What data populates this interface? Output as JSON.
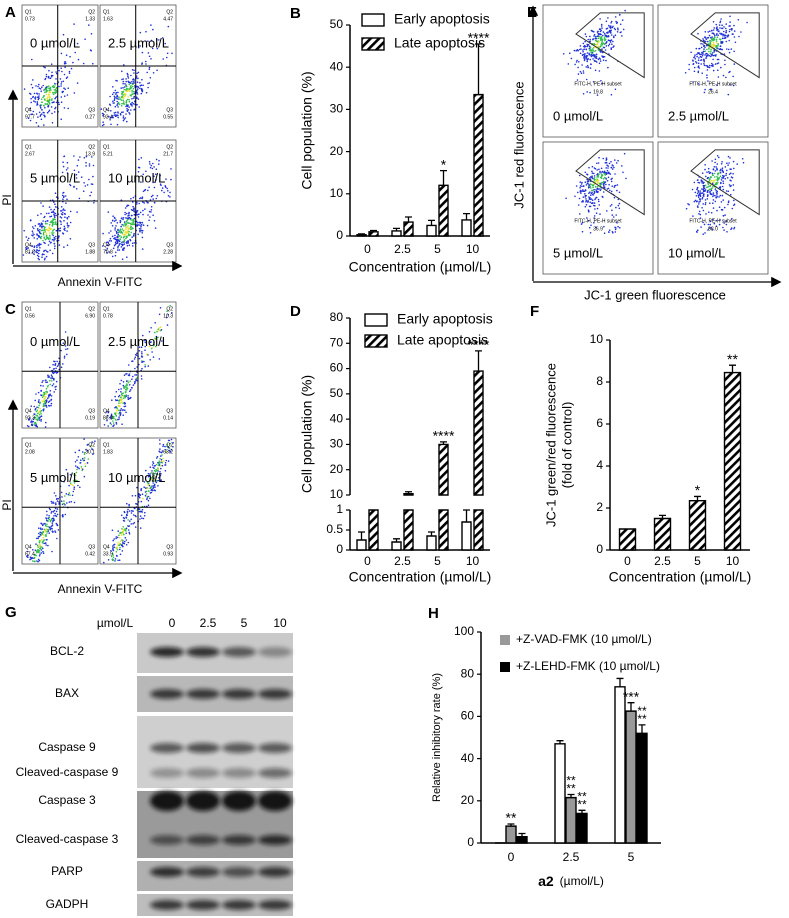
{
  "chart_data": [
    {
      "type": "bar",
      "panel": "B",
      "ylabel": "Cell population (%)",
      "xlabel": "Concentration (µmol/L)",
      "categories": [
        "0",
        "2.5",
        "5",
        "10"
      ],
      "ylim": [
        0,
        50
      ],
      "yticks": [
        0,
        10,
        20,
        30,
        40,
        50
      ],
      "series": [
        {
          "name": "Early apoptosis",
          "color": "#ffffff",
          "hatch": false,
          "values": [
            0.3,
            1.2,
            2.5,
            3.8
          ],
          "errors": [
            0.2,
            0.6,
            1.2,
            1.5
          ],
          "annotations": [
            null,
            null,
            null,
            null
          ]
        },
        {
          "name": "Late apoptosis",
          "color": "#ffffff",
          "hatch": true,
          "values": [
            1.0,
            3.3,
            12,
            33.5
          ],
          "errors": [
            0.3,
            1.2,
            3.5,
            12
          ],
          "annotations": [
            null,
            null,
            "*",
            "****"
          ]
        }
      ]
    },
    {
      "type": "bar",
      "panel": "D",
      "ylabel": "Cell population (%)",
      "xlabel": "Concentration (µmol/L)",
      "categories": [
        "0",
        "2.5",
        "5",
        "10"
      ],
      "ylim": [
        0,
        80
      ],
      "ybreak": [
        1,
        10
      ],
      "yticks": [
        0,
        0.5,
        1,
        10,
        20,
        30,
        40,
        50,
        60,
        70,
        80
      ],
      "series": [
        {
          "name": "Early apoptosis",
          "color": "#ffffff",
          "hatch": false,
          "values": [
            0.25,
            0.2,
            0.35,
            0.7
          ],
          "errors": [
            0.2,
            0.08,
            0.1,
            0.35
          ],
          "annotations": [
            null,
            null,
            null,
            null
          ]
        },
        {
          "name": "Late apoptosis",
          "color": "#ffffff",
          "hatch": true,
          "values": [
            1,
            10.5,
            30,
            59
          ],
          "errors": [
            0,
            0.8,
            1,
            8
          ],
          "annotations": [
            null,
            null,
            "****",
            "****"
          ]
        }
      ]
    },
    {
      "type": "bar",
      "panel": "F",
      "ylabel": [
        "JC-1 green/red fluorescence",
        "(fold of control)"
      ],
      "xlabel": "Concentration (µmol/L)",
      "categories": [
        "0",
        "2.5",
        "5",
        "10"
      ],
      "ylim": [
        0,
        10
      ],
      "yticks": [
        0,
        2,
        4,
        6,
        8,
        10
      ],
      "series": [
        {
          "color": "#ffffff",
          "hatch": true,
          "values": [
            1,
            1.5,
            2.35,
            8.45
          ],
          "errors": [
            0,
            0.15,
            0.2,
            0.35
          ],
          "annotations": [
            null,
            null,
            "*",
            "**"
          ]
        }
      ]
    },
    {
      "type": "bar",
      "panel": "H",
      "ylabel": "Relative inhibitory rate (%)",
      "xlabel": [
        "a2",
        "(µmol/L)"
      ],
      "categories": [
        "0",
        "2.5",
        "5"
      ],
      "ylim": [
        0,
        100
      ],
      "yticks": [
        0,
        20,
        40,
        60,
        80,
        100
      ],
      "series": [
        {
          "color": "#ffffff",
          "hatch": false,
          "values": [
            0,
            47,
            74
          ],
          "errors": [
            0,
            1.5,
            4
          ],
          "annotations": [
            null,
            null,
            null
          ]
        },
        {
          "name": "+Z-VAD-FMK (10 µmol/L)",
          "color": "#999999",
          "hatch": false,
          "values": [
            8,
            21.5,
            62.5
          ],
          "errors": [
            1,
            1.5,
            4
          ],
          "annotations": [
            "**",
            [
              "**",
              "**"
            ],
            "***"
          ]
        },
        {
          "name": "+Z-LEHD-FMK (10 µmol/L)",
          "color": "#000000",
          "hatch": false,
          "values": [
            3,
            14,
            52
          ],
          "errors": [
            1.5,
            1.5,
            4
          ],
          "annotations": [
            null,
            [
              "**",
              "**"
            ],
            [
              "**",
              "**"
            ]
          ]
        }
      ]
    }
  ],
  "flow_a": {
    "panel": "A",
    "xlabel": "Annexin V-FITC",
    "ylabel": "PI",
    "plots": [
      {
        "label": "0 µmol/L",
        "quadrants": [
          {
            "name": "Q1",
            "value": "0.73"
          },
          {
            "name": "Q2",
            "value": "1.33"
          },
          {
            "name": "Q3",
            "value": "0.27"
          },
          {
            "name": "Q4",
            "value": "97.7"
          }
        ]
      },
      {
        "label": "2.5 µmol/L",
        "quadrants": [
          {
            "name": "Q1",
            "value": "1.63"
          },
          {
            "name": "Q2",
            "value": "4.47"
          },
          {
            "name": "Q3",
            "value": "0.55"
          },
          {
            "name": "Q4",
            "value": "93.4"
          }
        ]
      },
      {
        "label": "5 µmol/L",
        "quadrants": [
          {
            "name": "Q1",
            "value": "2.67"
          },
          {
            "name": "Q2",
            "value": "13.9"
          },
          {
            "name": "Q3",
            "value": "1.88"
          },
          {
            "name": "Q4",
            "value": "81.6"
          }
        ]
      },
      {
        "label": "10 µmol/L",
        "quadrants": [
          {
            "name": "Q1",
            "value": "5.21"
          },
          {
            "name": "Q2",
            "value": "21.7"
          },
          {
            "name": "Q3",
            "value": "2.28"
          },
          {
            "name": "Q4",
            "value": "70.8"
          }
        ]
      }
    ]
  },
  "flow_c": {
    "panel": "C",
    "xlabel": "Annexin V-FITC",
    "ylabel": "PI",
    "plots": [
      {
        "label": "0 µmol/L",
        "quadrants": [
          {
            "name": "Q1",
            "value": "0.56"
          },
          {
            "name": "Q2",
            "value": "6.90"
          },
          {
            "name": "Q3",
            "value": "0.19"
          },
          {
            "name": "Q4",
            "value": "92.3"
          }
        ]
      },
      {
        "label": "2.5 µmol/L",
        "quadrants": [
          {
            "name": "Q1",
            "value": "0.78"
          },
          {
            "name": "Q2",
            "value": "10.3"
          },
          {
            "name": "Q3",
            "value": "0.14"
          },
          {
            "name": "Q4",
            "value": "88.8"
          }
        ]
      },
      {
        "label": "5 µmol/L",
        "quadrants": [
          {
            "name": "Q1",
            "value": "2.08"
          },
          {
            "name": "Q2",
            "value": "30.1"
          },
          {
            "name": "Q3",
            "value": "0.42"
          },
          {
            "name": "Q4",
            "value": "67.4"
          }
        ]
      },
      {
        "label": "10 µmol/L",
        "quadrants": [
          {
            "name": "Q1",
            "value": "1.83"
          },
          {
            "name": "Q2",
            "value": "63.2"
          },
          {
            "name": "Q3",
            "value": "0.93"
          },
          {
            "name": "Q4",
            "value": "33.9"
          }
        ]
      }
    ]
  },
  "flow_e": {
    "panel": "E",
    "xlabel": "JC-1 green fluorescence",
    "ylabel": "JC-1 red fluorescence",
    "plots": [
      {
        "label": "0 µmol/L",
        "gate": "FITC-H, PE-H subset",
        "value": "19.8"
      },
      {
        "label": "2.5 µmol/L",
        "gate": "FITC-H, PE-H subset",
        "value": "26.4"
      },
      {
        "label": "5 µmol/L",
        "gate": "FITC-H, PE-H subset",
        "value": "36.9"
      },
      {
        "label": "10 µmol/L",
        "gate": "FITC-H, PE-H subset",
        "value": "68.0"
      }
    ]
  },
  "western": {
    "panel": "G",
    "unit": "µmol/L",
    "lanes": [
      "0",
      "2.5",
      "5",
      "10"
    ],
    "rows": [
      [
        "BCL-2"
      ],
      [
        "BAX"
      ],
      [
        "Caspase 9",
        "Cleaved-caspase 9"
      ],
      [
        "Caspase 3",
        "Cleaved-caspase 3"
      ],
      [
        "PARP"
      ],
      [
        "GADPH"
      ]
    ]
  }
}
